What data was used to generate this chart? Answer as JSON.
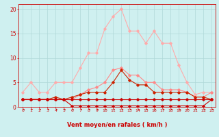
{
  "background_color": "#cff0f0",
  "grid_color": "#b0d8d8",
  "xlabel": "Vent moyen/en rafales ( km/h )",
  "xlabel_color": "#cc0000",
  "tick_color": "#cc0000",
  "xlim": [
    -0.5,
    23.5
  ],
  "ylim": [
    0,
    21
  ],
  "yticks": [
    0,
    5,
    10,
    15,
    20
  ],
  "xticks": [
    0,
    1,
    2,
    3,
    4,
    5,
    6,
    7,
    8,
    9,
    10,
    11,
    12,
    13,
    14,
    15,
    16,
    17,
    18,
    19,
    20,
    21,
    22,
    23
  ],
  "series": [
    {
      "name": "light_pink_peak",
      "color": "#ffaaaa",
      "alpha": 1.0,
      "linewidth": 0.8,
      "marker": "D",
      "markersize": 1.8,
      "x": [
        0,
        1,
        2,
        3,
        4,
        5,
        6,
        7,
        8,
        9,
        10,
        11,
        12,
        13,
        14,
        15,
        16,
        17,
        18,
        19,
        20,
        21,
        22,
        23
      ],
      "y": [
        3,
        5,
        3,
        3,
        5,
        5,
        5,
        8,
        11,
        11,
        16,
        18.5,
        20,
        15.5,
        15.5,
        13,
        15.5,
        13,
        13,
        8.5,
        5,
        2.5,
        3,
        3
      ]
    },
    {
      "name": "medium_pink",
      "color": "#ff8888",
      "alpha": 1.0,
      "linewidth": 0.8,
      "marker": "D",
      "markersize": 1.8,
      "x": [
        0,
        1,
        2,
        3,
        4,
        5,
        6,
        7,
        8,
        9,
        10,
        11,
        12,
        13,
        14,
        15,
        16,
        17,
        18,
        19,
        20,
        21,
        22,
        23
      ],
      "y": [
        1.5,
        1.5,
        1.5,
        1.5,
        1.5,
        1.5,
        1.5,
        2.5,
        3.5,
        4,
        5,
        7.5,
        8,
        6.5,
        6.5,
        5,
        5,
        3.5,
        3.5,
        3.5,
        3,
        2,
        2,
        3
      ]
    },
    {
      "name": "dark_red_mid",
      "color": "#cc2200",
      "alpha": 1.0,
      "linewidth": 0.8,
      "marker": "D",
      "markersize": 1.8,
      "x": [
        0,
        1,
        2,
        3,
        4,
        5,
        6,
        7,
        8,
        9,
        10,
        11,
        12,
        13,
        14,
        15,
        16,
        17,
        18,
        19,
        20,
        21,
        22,
        23
      ],
      "y": [
        1.5,
        1.5,
        1.5,
        1.5,
        2,
        1.5,
        2,
        2.5,
        3,
        3,
        3,
        5,
        7.5,
        5.5,
        4.5,
        4.5,
        3,
        3,
        3,
        3,
        3,
        2,
        2,
        1.5
      ]
    },
    {
      "name": "dark_red_flat",
      "color": "#cc0000",
      "alpha": 1.0,
      "linewidth": 0.8,
      "marker": "D",
      "markersize": 1.8,
      "x": [
        0,
        1,
        2,
        3,
        4,
        5,
        6,
        7,
        8,
        9,
        10,
        11,
        12,
        13,
        14,
        15,
        16,
        17,
        18,
        19,
        20,
        21,
        22,
        23
      ],
      "y": [
        1.5,
        1.5,
        1.5,
        1.5,
        1.5,
        1.5,
        1.5,
        1.5,
        1.5,
        1.5,
        1.5,
        1.5,
        1.5,
        1.5,
        1.5,
        1.5,
        1.5,
        1.5,
        1.5,
        1.5,
        1.5,
        1.5,
        1.5,
        1.5
      ]
    },
    {
      "name": "dark_red_bottom",
      "color": "#cc0000",
      "alpha": 1.0,
      "linewidth": 0.8,
      "marker": "D",
      "markersize": 1.8,
      "x": [
        0,
        1,
        2,
        3,
        4,
        5,
        6,
        7,
        8,
        9,
        10,
        11,
        12,
        13,
        14,
        15,
        16,
        17,
        18,
        19,
        20,
        21,
        22,
        23
      ],
      "y": [
        1.5,
        1.5,
        1.5,
        1.5,
        1.5,
        1.5,
        0.2,
        0.2,
        0.2,
        0.2,
        0.2,
        0.2,
        0.2,
        0.2,
        0.2,
        0.2,
        0.2,
        0.2,
        0.2,
        0.2,
        0.2,
        0.2,
        0.2,
        1.5
      ]
    }
  ]
}
